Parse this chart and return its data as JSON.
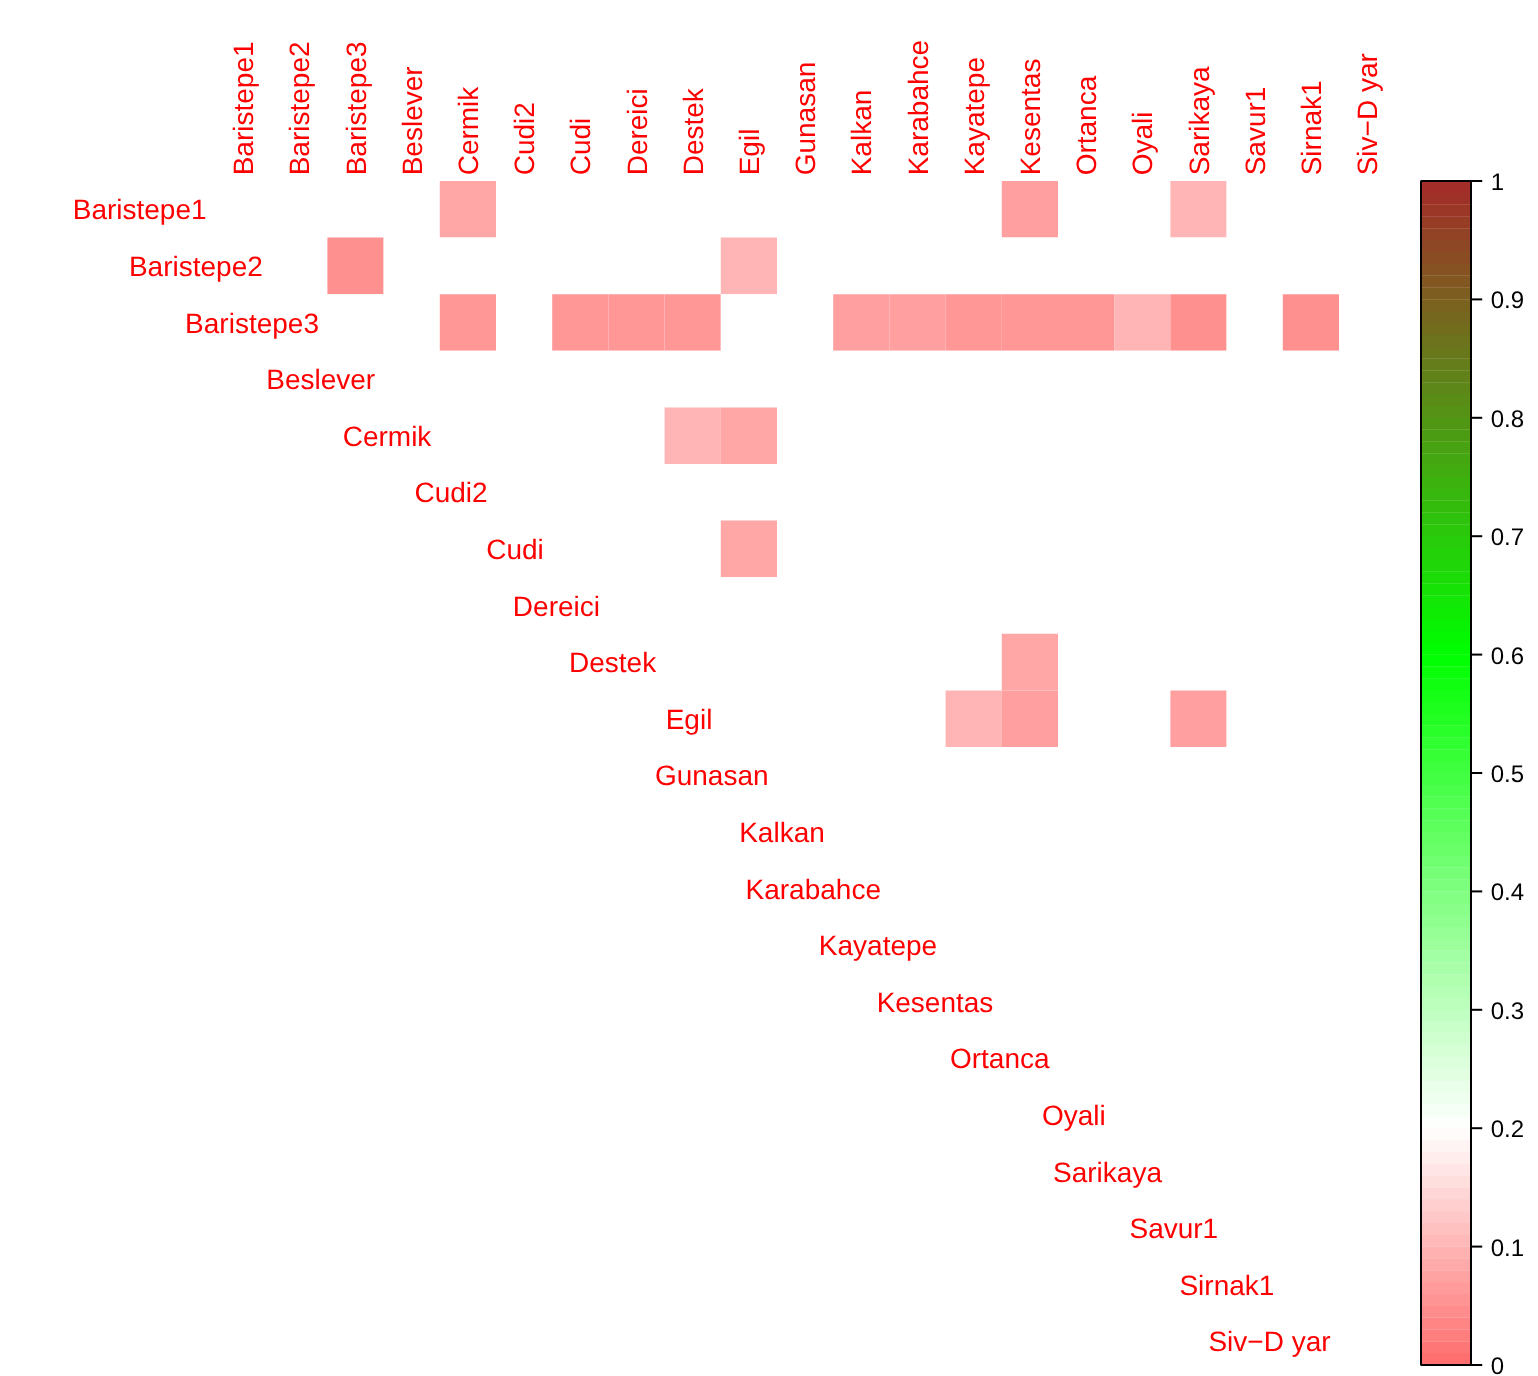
{
  "chart_data": {
    "type": "heatmap",
    "categories": [
      "Baristepe1",
      "Baristepe2",
      "Baristepe3",
      "Beslever",
      "Cermik",
      "Cudi2",
      "Cudi",
      "Dereici",
      "Destek",
      "Egil",
      "Gunasan",
      "Kalkan",
      "Karabahce",
      "Kayatepe",
      "Kesentas",
      "Ortanca",
      "Oyali",
      "Sarikaya",
      "Savur1",
      "Sirnak1",
      "Siv−D yar"
    ],
    "y_categories": [
      "Baristepe1",
      "Baristepe2",
      "Baristepe3",
      "Beslever",
      "Cermik",
      "Cudi2",
      "Cudi",
      "Dereici",
      "Destek",
      "Egil",
      "Gunasan",
      "Kalkan",
      "Karabahce",
      "Kayatepe",
      "Kesentas",
      "Ortanca",
      "Oyali",
      "Sarikaya",
      "Savur1",
      "Sirnak1",
      "Siv−D yar"
    ],
    "cells": [
      [
        0.2,
        0.2,
        0.2,
        0.2,
        0.08,
        0.2,
        0.2,
        0.2,
        0.2,
        0.2,
        0.2,
        0.2,
        0.2,
        0.2,
        0.07,
        0.2,
        0.2,
        0.1,
        0.2,
        0.2,
        0.2
      ],
      [
        null,
        0.2,
        0.05,
        0.2,
        0.2,
        0.2,
        0.2,
        0.2,
        0.2,
        0.1,
        0.2,
        0.2,
        0.2,
        0.2,
        0.2,
        0.2,
        0.2,
        0.2,
        0.2,
        0.2,
        0.2
      ],
      [
        null,
        null,
        0.2,
        0.2,
        0.06,
        0.2,
        0.06,
        0.06,
        0.06,
        0.2,
        0.2,
        0.07,
        0.07,
        0.06,
        0.06,
        0.06,
        0.1,
        0.05,
        0.2,
        0.05,
        0.2
      ],
      [
        null,
        null,
        null,
        0.2,
        0.2,
        0.2,
        0.2,
        0.2,
        0.2,
        0.2,
        0.2,
        0.2,
        0.2,
        0.2,
        0.2,
        0.2,
        0.2,
        0.2,
        0.2,
        0.2,
        0.2
      ],
      [
        null,
        null,
        null,
        null,
        0.2,
        0.2,
        0.2,
        0.2,
        0.1,
        0.08,
        0.2,
        0.2,
        0.2,
        0.2,
        0.2,
        0.2,
        0.2,
        0.2,
        0.2,
        0.2,
        0.2
      ],
      [
        null,
        null,
        null,
        null,
        null,
        0.2,
        0.2,
        0.2,
        0.2,
        0.2,
        0.2,
        0.2,
        0.2,
        0.2,
        0.2,
        0.2,
        0.2,
        0.2,
        0.2,
        0.2,
        0.2
      ],
      [
        null,
        null,
        null,
        null,
        null,
        null,
        0.2,
        0.2,
        0.2,
        0.08,
        0.2,
        0.2,
        0.2,
        0.2,
        0.2,
        0.2,
        0.2,
        0.2,
        0.2,
        0.2,
        0.2
      ],
      [
        null,
        null,
        null,
        null,
        null,
        null,
        null,
        0.2,
        0.2,
        0.2,
        0.2,
        0.2,
        0.2,
        0.2,
        0.2,
        0.2,
        0.2,
        0.2,
        0.2,
        0.2,
        0.2
      ],
      [
        null,
        null,
        null,
        null,
        null,
        null,
        null,
        null,
        0.2,
        0.2,
        0.2,
        0.2,
        0.2,
        0.2,
        0.08,
        0.2,
        0.2,
        0.2,
        0.2,
        0.2,
        0.2
      ],
      [
        null,
        null,
        null,
        null,
        null,
        null,
        null,
        null,
        null,
        0.2,
        0.2,
        0.2,
        0.2,
        0.1,
        0.07,
        0.2,
        0.2,
        0.07,
        0.2,
        0.2,
        0.2
      ],
      [
        null,
        null,
        null,
        null,
        null,
        null,
        null,
        null,
        null,
        null,
        0.2,
        0.2,
        0.2,
        0.2,
        0.2,
        0.2,
        0.2,
        0.2,
        0.2,
        0.2,
        0.2
      ],
      [
        null,
        null,
        null,
        null,
        null,
        null,
        null,
        null,
        null,
        null,
        null,
        0.2,
        0.2,
        0.2,
        0.2,
        0.2,
        0.2,
        0.2,
        0.2,
        0.2,
        0.2
      ],
      [
        null,
        null,
        null,
        null,
        null,
        null,
        null,
        null,
        null,
        null,
        null,
        null,
        0.2,
        0.2,
        0.2,
        0.2,
        0.2,
        0.2,
        0.2,
        0.2,
        0.2
      ],
      [
        null,
        null,
        null,
        null,
        null,
        null,
        null,
        null,
        null,
        null,
        null,
        null,
        null,
        0.2,
        0.2,
        0.2,
        0.2,
        0.2,
        0.2,
        0.2,
        0.2
      ],
      [
        null,
        null,
        null,
        null,
        null,
        null,
        null,
        null,
        null,
        null,
        null,
        null,
        null,
        null,
        0.2,
        0.2,
        0.2,
        0.2,
        0.2,
        0.2,
        0.2
      ],
      [
        null,
        null,
        null,
        null,
        null,
        null,
        null,
        null,
        null,
        null,
        null,
        null,
        null,
        null,
        null,
        0.2,
        0.2,
        0.2,
        0.2,
        0.2,
        0.2
      ],
      [
        null,
        null,
        null,
        null,
        null,
        null,
        null,
        null,
        null,
        null,
        null,
        null,
        null,
        null,
        null,
        null,
        0.2,
        0.2,
        0.2,
        0.2,
        0.2
      ],
      [
        null,
        null,
        null,
        null,
        null,
        null,
        null,
        null,
        null,
        null,
        null,
        null,
        null,
        null,
        null,
        null,
        null,
        0.2,
        0.2,
        0.2,
        0.2
      ],
      [
        null,
        null,
        null,
        null,
        null,
        null,
        null,
        null,
        null,
        null,
        null,
        null,
        null,
        null,
        null,
        null,
        null,
        null,
        0.2,
        0.2,
        0.2
      ],
      [
        null,
        null,
        null,
        null,
        null,
        null,
        null,
        null,
        null,
        null,
        null,
        null,
        null,
        null,
        null,
        null,
        null,
        null,
        null,
        0.2,
        0.2
      ],
      [
        null,
        null,
        null,
        null,
        null,
        null,
        null,
        null,
        null,
        null,
        null,
        null,
        null,
        null,
        null,
        null,
        null,
        null,
        null,
        null,
        0.2
      ]
    ],
    "clim": [
      0,
      1
    ],
    "cticks": [
      0,
      0.1,
      0.2,
      0.3,
      0.4,
      0.5,
      0.6,
      0.7,
      0.8,
      0.9,
      1
    ]
  }
}
